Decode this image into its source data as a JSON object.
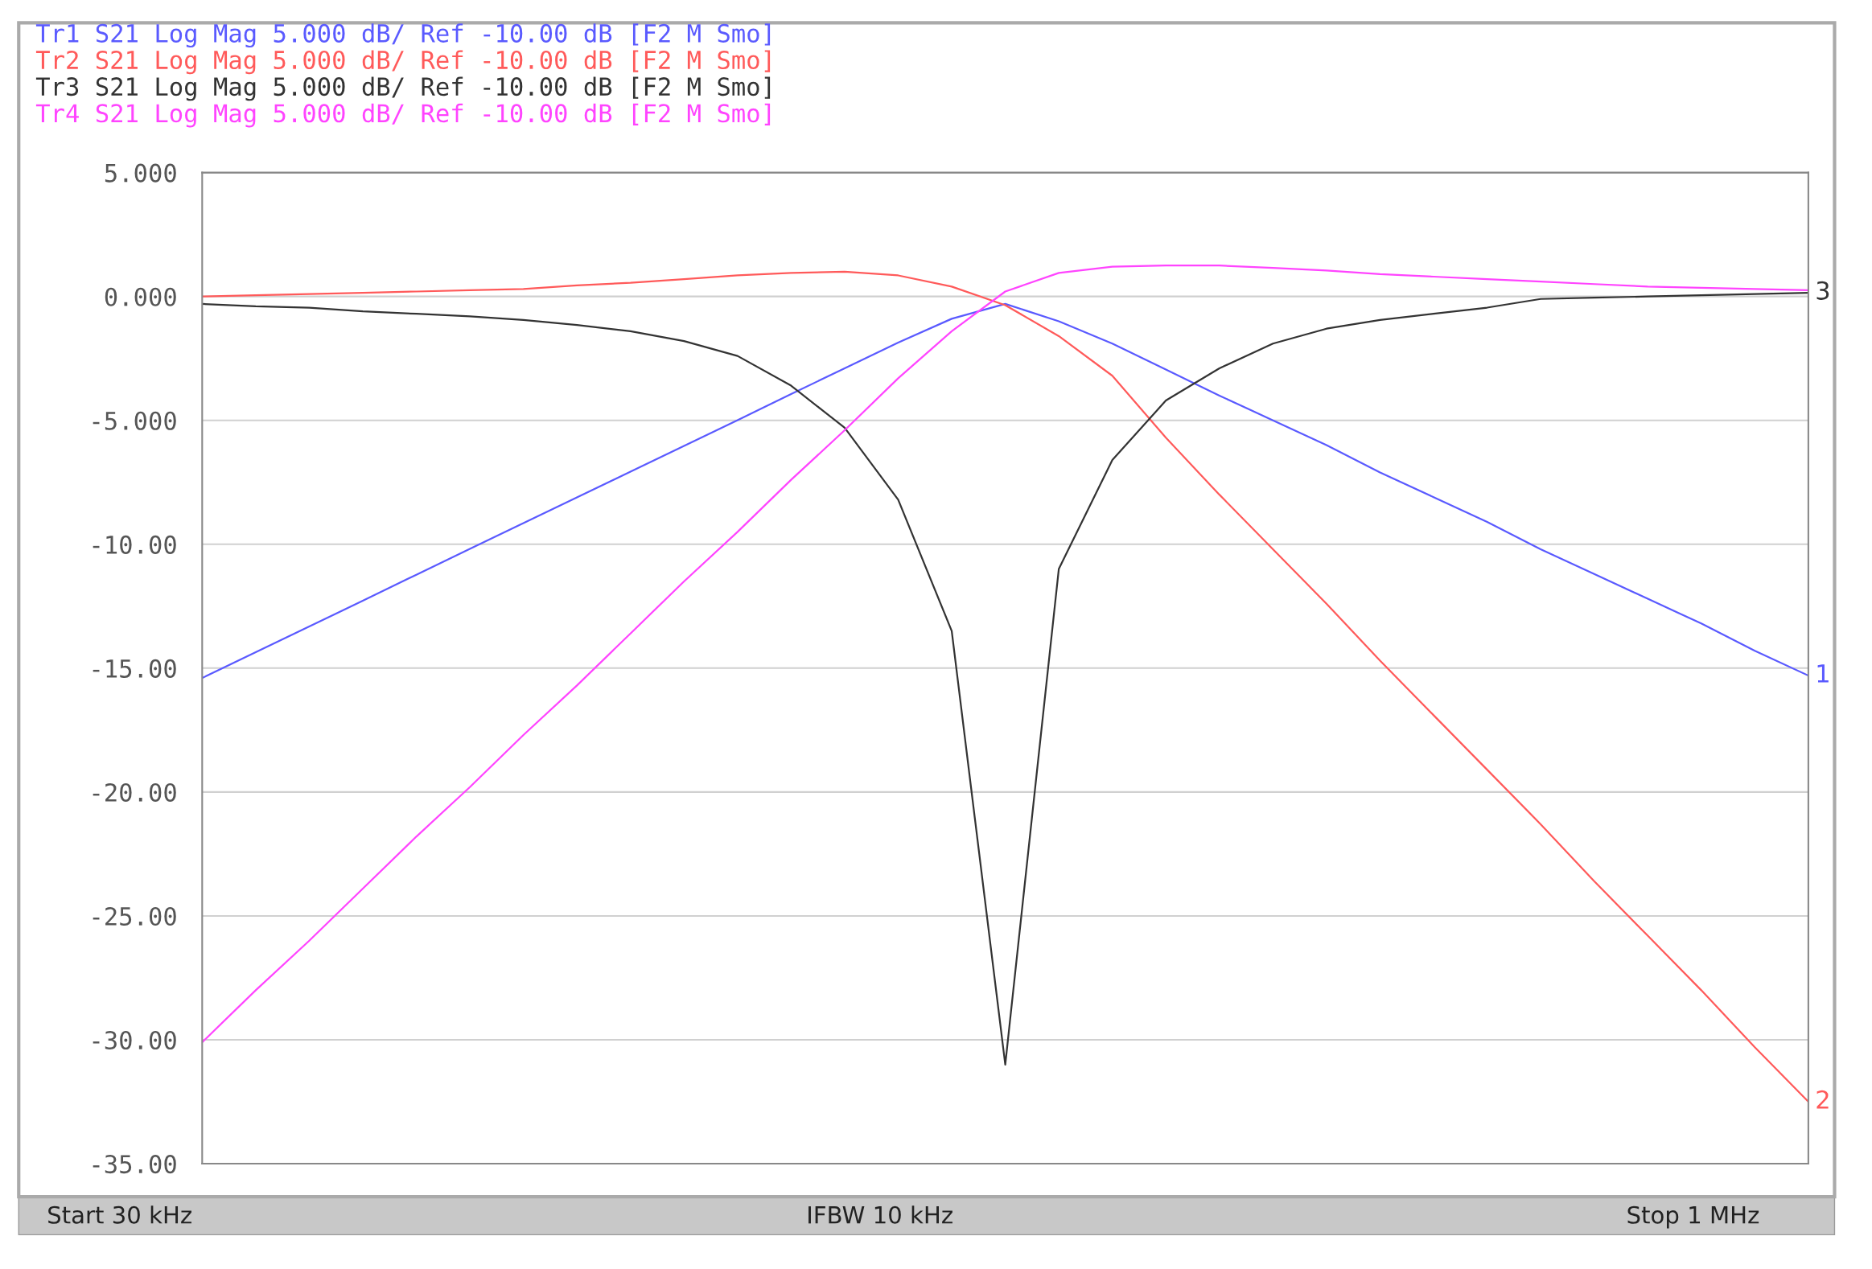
{
  "chart_data": {
    "type": "line",
    "categories": [
      null,
      null,
      null,
      null,
      null,
      null,
      null,
      null,
      null,
      null,
      null,
      null,
      null,
      null,
      null,
      null,
      null,
      null,
      null,
      null,
      null,
      null,
      null,
      null,
      null,
      null,
      null,
      null,
      null,
      null,
      null
    ],
    "ylim": [
      -35,
      5
    ],
    "yticks": [
      {
        "value": 5,
        "label": "5.000"
      },
      {
        "value": 0,
        "label": "0.000"
      },
      {
        "value": -5,
        "label": "-5.000"
      },
      {
        "value": -10,
        "label": "-10.00"
      },
      {
        "value": -15,
        "label": "-15.00"
      },
      {
        "value": -20,
        "label": "-20.00"
      },
      {
        "value": -25,
        "label": "-25.00"
      },
      {
        "value": -30,
        "label": "-30.00"
      },
      {
        "value": -35,
        "label": "-35.00"
      }
    ],
    "grid": "y",
    "marker": "none",
    "line_style": "solid",
    "series": [
      {
        "name": "Tr1 S21 Log Mag 5.000 dB/ Ref -10.00 dB [F2 M Smo]",
        "color": "#5a5aff",
        "values": [
          -15.4,
          -14.36,
          -13.32,
          -12.28,
          -11.23,
          -10.19,
          -9.15,
          -8.11,
          -7.07,
          -6.03,
          -4.99,
          -3.94,
          -2.9,
          -1.86,
          -0.9,
          -0.3,
          -1.0,
          -1.9,
          -2.95,
          -4.0,
          -5.0,
          -6.0,
          -7.1,
          -8.1,
          -9.1,
          -10.2,
          -11.2,
          -12.2,
          -13.2,
          -14.3,
          -15.3
        ]
      },
      {
        "name": "Tr2 S21 Log Mag 5.000 dB/ Ref -10.00 dB [F2 M Smo]",
        "color": "#ff5a5a",
        "values": [
          0.0,
          0.05,
          0.1,
          0.15,
          0.2,
          0.25,
          0.3,
          0.45,
          0.55,
          0.7,
          0.85,
          0.95,
          1.0,
          0.85,
          0.4,
          -0.35,
          -1.6,
          -3.2,
          -5.7,
          -8.0,
          -10.2,
          -12.4,
          -14.7,
          -16.9,
          -19.1,
          -21.3,
          -23.6,
          -25.8,
          -28.0,
          -30.3,
          -32.5
        ]
      },
      {
        "name": "Tr3 S21 Log Mag 5.000 dB/ Ref -10.00 dB [F2 M Smo]",
        "color": "#333333",
        "values": [
          -0.3,
          -0.4,
          -0.45,
          -0.6,
          -0.7,
          -0.8,
          -0.95,
          -1.15,
          -1.4,
          -1.8,
          -2.4,
          -3.6,
          -5.3,
          -8.2,
          -13.5,
          -31.0,
          -11.0,
          -6.6,
          -4.2,
          -2.9,
          -1.9,
          -1.3,
          -0.95,
          -0.7,
          -0.45,
          -0.1,
          -0.05,
          0.0,
          0.05,
          0.1,
          0.15
        ]
      },
      {
        "name": "Tr4 S21 Log Mag 5.000 dB/ Ref -10.00 dB [F2 M Smo]",
        "color": "#ff44ff",
        "values": [
          -30.1,
          -28.0,
          -26.0,
          -23.9,
          -21.8,
          -19.8,
          -17.7,
          -15.7,
          -13.6,
          -11.5,
          -9.5,
          -7.4,
          -5.4,
          -3.3,
          -1.4,
          0.2,
          0.95,
          1.2,
          1.25,
          1.25,
          1.15,
          1.05,
          0.9,
          0.8,
          0.7,
          0.6,
          0.5,
          0.4,
          0.35,
          0.3,
          0.25
        ]
      }
    ],
    "annotations": [
      "1",
      "2",
      "3",
      "Start 30 kHz",
      "IFBW 10 kHz",
      "Stop 1 MHz"
    ]
  }
}
